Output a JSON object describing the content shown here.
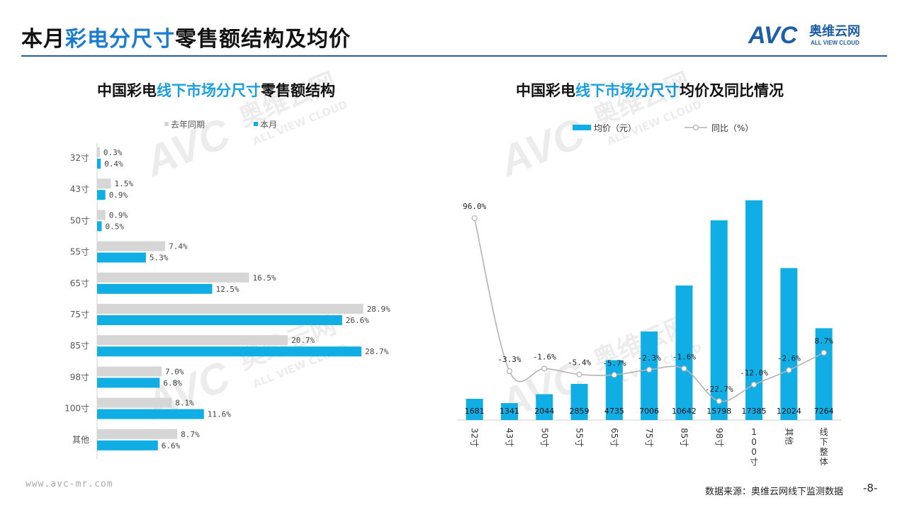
{
  "page": {
    "title_pre": "本月",
    "title_hl": "彩电分尺寸",
    "title_post": "零售额结构及均价",
    "logo_mark": "AVC",
    "logo_cn": "奥维云网",
    "logo_en": "ALL VIEW CLOUD",
    "watermark_en": "ALL VIEW CLOUD",
    "footer_url": "www.avc-mr.com",
    "footer_source": "数据来源：奥维云网线下监测数据",
    "page_number": "-8-"
  },
  "colors": {
    "brand": "#1f5fa8",
    "bar_this_month": "#11aee5",
    "bar_last_year": "#d6d6d6",
    "line": "#b3b3b3"
  },
  "chart_data": [
    {
      "type": "bar",
      "orientation": "horizontal",
      "title_pre": "中国彩电",
      "title_hl": "线下市场分尺寸",
      "title_post": "零售额结构",
      "legend_position": "top",
      "categories": [
        "32寸",
        "43寸",
        "50寸",
        "55寸",
        "65寸",
        "75寸",
        "85寸",
        "98寸",
        "100寸",
        "其他"
      ],
      "series": [
        {
          "name": "去年同期",
          "values": [
            0.3,
            1.5,
            0.9,
            7.4,
            16.5,
            28.9,
            20.7,
            7.0,
            8.1,
            8.7
          ]
        },
        {
          "name": "本月",
          "values": [
            0.4,
            0.9,
            0.5,
            5.3,
            12.5,
            26.6,
            28.7,
            6.8,
            11.6,
            6.6
          ]
        }
      ],
      "value_unit": "%",
      "xlim": [
        0,
        31
      ]
    },
    {
      "type": "bar+line",
      "title_pre": "中国彩电",
      "title_hl": "线下市场分尺寸",
      "title_post": "均价及同比情况",
      "legend_position": "top",
      "categories": [
        "32寸",
        "43寸",
        "50寸",
        "55寸",
        "65寸",
        "75寸",
        "85寸",
        "98寸",
        "100寸",
        "其他",
        "线下整体"
      ],
      "bar_series": {
        "name": "均价（元）",
        "values": [
          1681,
          1341,
          2044,
          2859,
          4735,
          7006,
          10642,
          15798,
          17385,
          12024,
          7264
        ]
      },
      "line_series": {
        "name": "同比（%）",
        "values": [
          96.0,
          -3.3,
          -1.6,
          -5.4,
          -5.7,
          -2.3,
          -1.6,
          -22.7,
          -12.0,
          -2.6,
          8.7
        ]
      },
      "bar_ylim": [
        0,
        19500
      ],
      "line_ylim": [
        -35,
        125
      ]
    }
  ]
}
